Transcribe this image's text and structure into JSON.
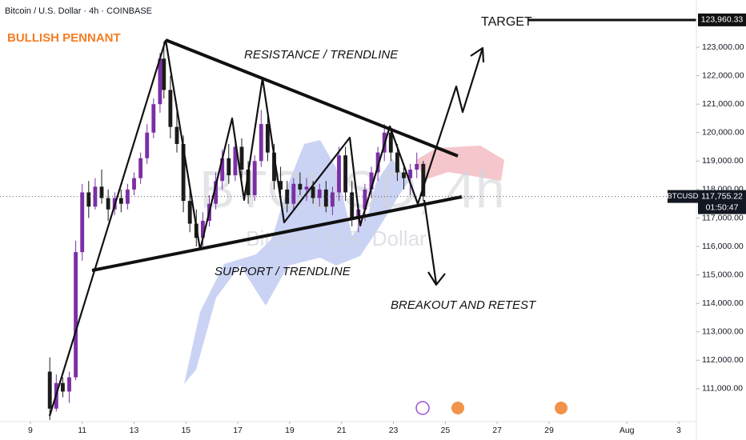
{
  "chart_data": {
    "type": "candlestick",
    "header": "Bitcoin / U.S. Dollar · 4h · COINBASE",
    "title": "BULLISH PENNANT",
    "watermark": "BTCUSD, 4h",
    "watermark_sub": "Bitcoin / U.S. Dollar",
    "annotations": [
      "RESISTANCE / TRENDLINE",
      "SUPPORT / TRENDLINE",
      "BREAKOUT AND RETEST",
      "TARGET"
    ],
    "symbol": "BTCUSD",
    "countdown": "01:50:47",
    "price_labels": [
      {
        "value": 123960.33,
        "label": "123,960.33"
      },
      {
        "value": 117755.22,
        "label": "117,755.22"
      }
    ],
    "up_color": "#7b2fa6",
    "down_color": "#1b1b1b",
    "x": [
      9.75,
      10,
      10.25,
      10.5,
      10.75,
      11,
      11.25,
      11.5,
      11.75,
      12,
      12.25,
      12.5,
      12.75,
      13,
      13.25,
      13.5,
      13.75,
      14,
      14.15,
      14.4,
      14.65,
      14.9,
      15.15,
      15.4,
      15.65,
      15.9,
      16.15,
      16.4,
      16.65,
      16.9,
      17.15,
      17.4,
      17.65,
      17.9,
      18.15,
      18.4,
      18.65,
      18.9,
      19.15,
      19.4,
      19.65,
      19.9,
      20.15,
      20.4,
      20.65,
      20.9,
      21.15,
      21.4,
      21.65,
      21.9,
      22.15,
      22.4,
      22.65,
      22.9,
      23.15,
      23.4,
      23.65,
      23.9,
      24.15
    ],
    "open": [
      111600,
      110300,
      111200,
      110900,
      111400,
      115800,
      117900,
      117400,
      118100,
      117700,
      117300,
      117700,
      117500,
      118000,
      118400,
      119100,
      120000,
      121000,
      122600,
      121500,
      120200,
      119600,
      117600,
      116800,
      116300,
      116900,
      117500,
      118300,
      119100,
      118500,
      119500,
      118700,
      117800,
      119000,
      120300,
      119300,
      118300,
      118000,
      117500,
      118200,
      118000,
      118100,
      117700,
      118000,
      117400,
      117900,
      119200,
      117900,
      117000,
      117300,
      118000,
      118600,
      119300,
      120000,
      119300,
      118600,
      118400,
      118700,
      118900
    ],
    "high": [
      112100,
      111500,
      111400,
      111600,
      116200,
      118200,
      118300,
      118400,
      118700,
      118000,
      117900,
      118000,
      118200,
      118600,
      119300,
      120300,
      121200,
      122800,
      123200,
      122000,
      121000,
      119900,
      118000,
      117300,
      117200,
      117800,
      118600,
      119400,
      119600,
      119700,
      119800,
      119000,
      119200,
      120800,
      120600,
      119600,
      118800,
      118300,
      118400,
      118600,
      118400,
      118300,
      118200,
      118300,
      118100,
      119500,
      119500,
      118300,
      117500,
      118200,
      118800,
      119500,
      120300,
      120200,
      119600,
      118900,
      118900,
      119300,
      119000
    ],
    "low": [
      109900,
      110200,
      110700,
      110500,
      111300,
      115500,
      117000,
      117300,
      117500,
      116900,
      117100,
      117200,
      117300,
      117800,
      118200,
      118900,
      119800,
      120700,
      121200,
      119800,
      119300,
      117200,
      116500,
      116000,
      116000,
      116700,
      117300,
      118000,
      118200,
      118300,
      118400,
      117500,
      117600,
      118800,
      119000,
      118000,
      117600,
      117200,
      117300,
      117800,
      117600,
      117500,
      117400,
      117200,
      117100,
      117600,
      117600,
      116700,
      116500,
      116900,
      117700,
      118300,
      119000,
      119000,
      118300,
      118000,
      117800,
      118400,
      117600
    ],
    "close": [
      110300,
      111200,
      110900,
      111400,
      115800,
      117900,
      117400,
      118100,
      117700,
      117300,
      117700,
      117500,
      118000,
      118400,
      119100,
      120000,
      121000,
      122600,
      121500,
      120200,
      119600,
      117600,
      116800,
      116300,
      116900,
      117500,
      118300,
      119100,
      118500,
      119500,
      118700,
      117800,
      119000,
      120300,
      119300,
      118300,
      118000,
      117500,
      118200,
      118000,
      118100,
      117700,
      118000,
      117400,
      117900,
      119200,
      117900,
      117000,
      117300,
      118000,
      118600,
      119300,
      120000,
      119300,
      118600,
      118400,
      118700,
      118900,
      117755.22
    ],
    "xlim": [
      7.83,
      34.68
    ],
    "xticks": [
      9,
      11,
      13,
      15,
      17,
      19,
      21,
      23,
      25,
      27,
      29,
      {
        "value": 32,
        "label": "Aug"
      },
      {
        "value": 34,
        "label": "3"
      }
    ],
    "ylim": [
      109760,
      124660
    ],
    "yticks": [
      {
        "value": 111000,
        "label": "111,000.00"
      },
      {
        "value": 112000,
        "label": "112,000.00"
      },
      {
        "value": 113000,
        "label": "113,000.00"
      },
      {
        "value": 114000,
        "label": "114,000.00"
      },
      {
        "value": 115000,
        "label": "115,000.00"
      },
      {
        "value": 116000,
        "label": "116,000.00"
      },
      {
        "value": 117000,
        "label": "117,000.00"
      },
      {
        "value": 118000,
        "label": "118,000.00"
      },
      {
        "value": 119000,
        "label": "119,000.00"
      },
      {
        "value": 120000,
        "label": "120,000.00"
      },
      {
        "value": 121000,
        "label": "121,000.00"
      },
      {
        "value": 122000,
        "label": "122,000.00"
      },
      {
        "value": 123000,
        "label": "123,000.00"
      }
    ]
  }
}
